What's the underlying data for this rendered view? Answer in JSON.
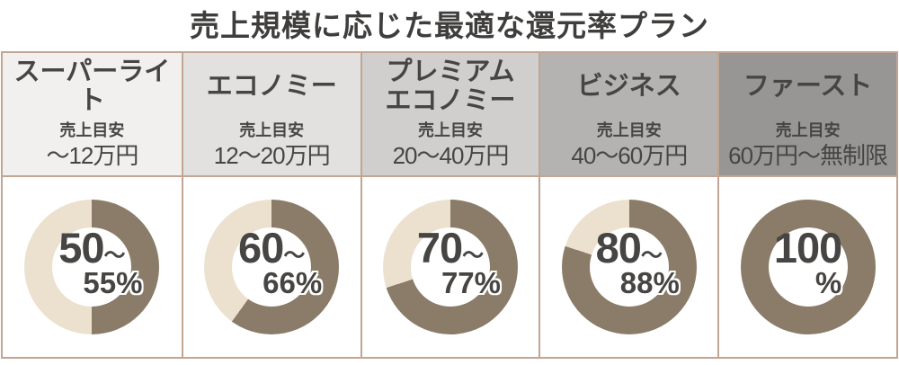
{
  "title": "売上規模に応じた最適な還元率プラン",
  "labels": {
    "sales_guide": "売上目安"
  },
  "colors": {
    "border": "#c2a593",
    "ring_fill": "#8a7c68",
    "ring_rest": "#ece1cf",
    "text": "#474543",
    "title_text": "#3f3e3c"
  },
  "plans": [
    {
      "name": "スーパーライト",
      "range": "～12万円",
      "rate_main": "50",
      "rate_tilde": "～",
      "rate_sub": "55%",
      "fill_pct": 50,
      "header_bg": "#f1f0ef"
    },
    {
      "name": "エコノミー",
      "range": "12～20万円",
      "rate_main": "60",
      "rate_tilde": "～",
      "rate_sub": "66%",
      "fill_pct": 60,
      "header_bg": "#e2e1e0"
    },
    {
      "name": "プレミアム",
      "name2": "エコノミー",
      "range": "20～40万円",
      "rate_main": "70",
      "rate_tilde": "～",
      "rate_sub": "77%",
      "fill_pct": 70,
      "header_bg": "#d0cfce"
    },
    {
      "name": "ビジネス",
      "range": "40～60万円",
      "rate_main": "80",
      "rate_tilde": "～",
      "rate_sub": "88%",
      "fill_pct": 80,
      "header_bg": "#b4b3b2"
    },
    {
      "name": "ファースト",
      "range": "60万円～無制限",
      "rate_main": "100",
      "rate_sub": "%",
      "fill_pct": 100,
      "header_bg": "#979695"
    }
  ],
  "chart_data": {
    "type": "pie",
    "title": "売上規模に応じた最適な還元率プラン",
    "legend_position": "none",
    "donuts": [
      {
        "plan": "スーパーライト",
        "sales_range": "～12万円",
        "rate_label": "50～55%",
        "fill_percent": 50
      },
      {
        "plan": "エコノミー",
        "sales_range": "12～20万円",
        "rate_label": "60～66%",
        "fill_percent": 60
      },
      {
        "plan": "プレミアムエコノミー",
        "sales_range": "20～40万円",
        "rate_label": "70～77%",
        "fill_percent": 70
      },
      {
        "plan": "ビジネス",
        "sales_range": "40～60万円",
        "rate_label": "80～88%",
        "fill_percent": 80
      },
      {
        "plan": "ファースト",
        "sales_range": "60万円～無制限",
        "rate_label": "100%",
        "fill_percent": 100
      }
    ]
  }
}
